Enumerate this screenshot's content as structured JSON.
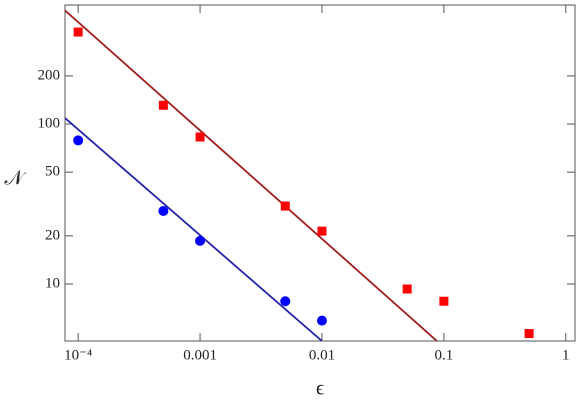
{
  "chart_data": {
    "type": "scatter",
    "xlabel": "ϵ",
    "ylabel": "𝒩",
    "xscale": "log",
    "yscale": "log",
    "xlim": [
      7.8e-05,
      1.19
    ],
    "ylim": [
      4.4,
      555
    ],
    "xticks": [
      {
        "value": 0.0001,
        "label": "10⁻⁴"
      },
      0.001,
      0.01,
      0.1,
      1
    ],
    "yticks": [
      10,
      20,
      50,
      100,
      200
    ],
    "series": [
      {
        "color": "#ff0000",
        "marker": "square",
        "x": [
          0.0001,
          0.0005,
          0.001,
          0.005,
          0.01,
          0.05,
          0.1,
          0.5
        ],
        "values": [
          376,
          131,
          83,
          30.7,
          21.4,
          9.3,
          7.8,
          4.9
        ]
      },
      {
        "color": "#0000ff",
        "marker": "circle",
        "x": [
          0.0001,
          0.0005,
          0.001,
          0.005,
          0.01
        ],
        "values": [
          79,
          28.6,
          18.6,
          7.8,
          5.9
        ]
      }
    ],
    "fits": [
      {
        "color": "#9e1c1c",
        "x": [
          7.8e-05,
          0.0877
        ],
        "values": [
          513,
          4.4
        ]
      },
      {
        "color": "#2323a8",
        "x": [
          7.8e-05,
          0.01
        ],
        "values": [
          109,
          4.4
        ]
      }
    ]
  }
}
